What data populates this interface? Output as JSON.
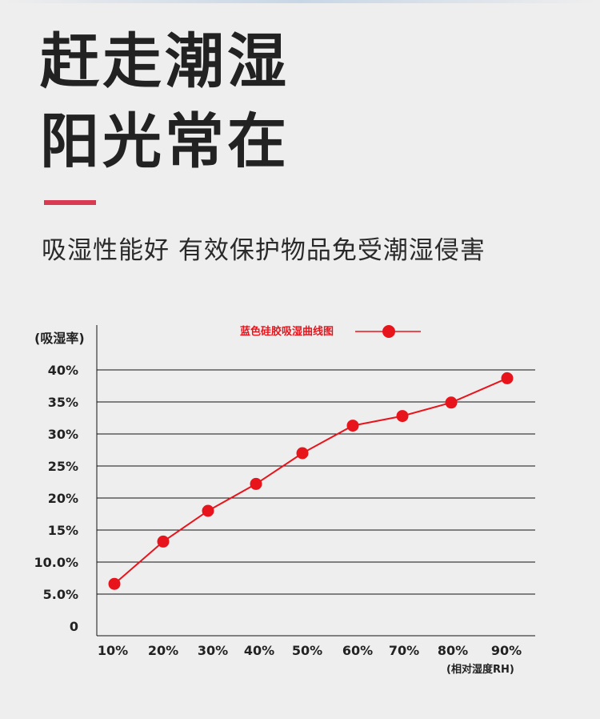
{
  "header": {
    "title_line1": "赶走潮湿",
    "title_line2": "阳光常在",
    "subtitle": "吸湿性能好 有效保护物品免受潮湿侵害"
  },
  "colors": {
    "accent": "#d83a52",
    "series": "#e8141c",
    "grid": "#111111"
  },
  "chart_data": {
    "type": "line",
    "ylabel": "(吸湿率)",
    "xlabel": "(相对湿度RH)",
    "x": [
      10,
      20,
      30,
      40,
      50,
      60,
      70,
      80,
      90
    ],
    "x_tick_labels": [
      "10%",
      "20%",
      "30%",
      "40%",
      "50%",
      "60%",
      "70%",
      "80%",
      "90%"
    ],
    "y_ticks": [
      0,
      5,
      10,
      15,
      20,
      25,
      30,
      35,
      40
    ],
    "y_tick_labels": [
      "0",
      "5.0%",
      "10.0%",
      "15%",
      "20%",
      "25%",
      "30%",
      "35%",
      "40%"
    ],
    "ylim": [
      0,
      40
    ],
    "grid": true,
    "legend_position": "top-center",
    "series": [
      {
        "name": "蓝色硅胶吸湿曲线图",
        "values": [
          6.6,
          13.2,
          18.0,
          22.2,
          27.0,
          31.3,
          32.8,
          34.9,
          38.7
        ]
      }
    ]
  }
}
